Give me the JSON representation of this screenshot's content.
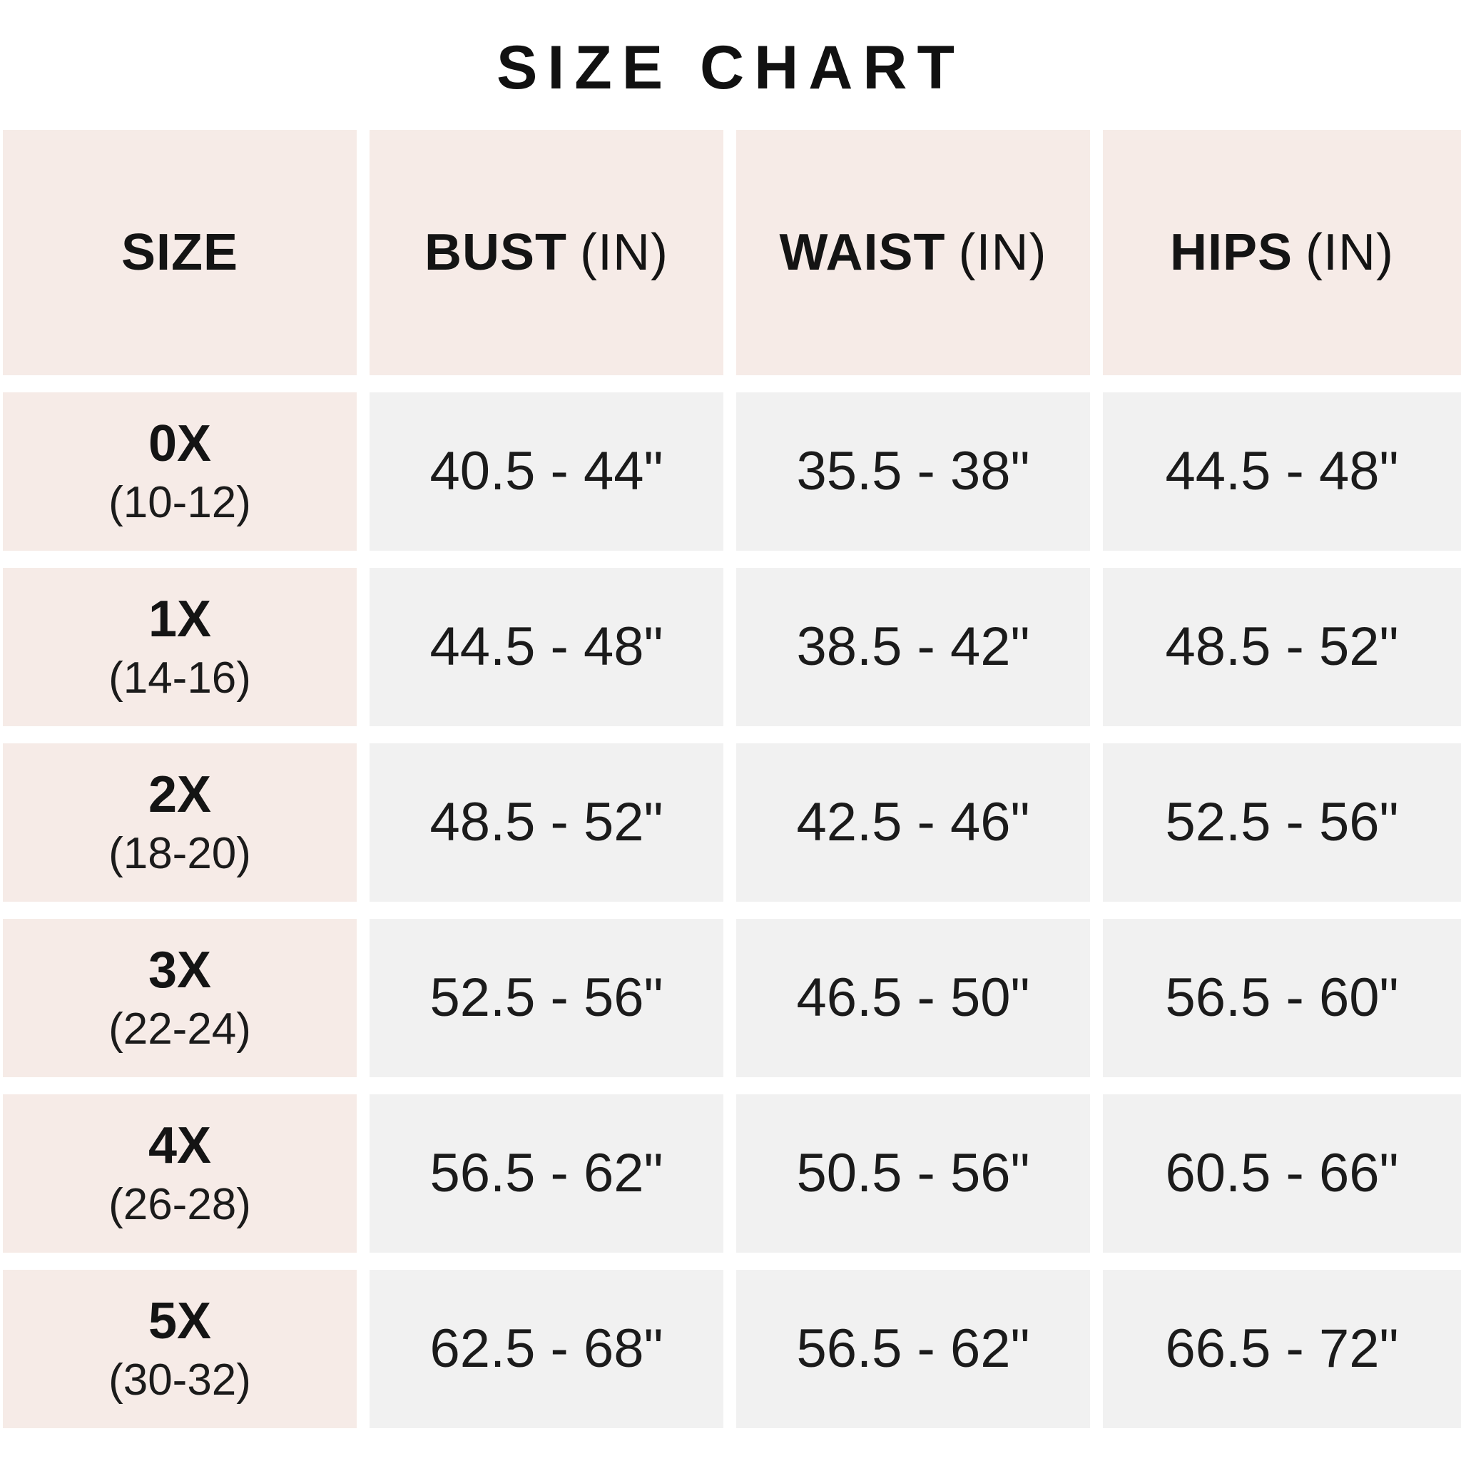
{
  "page": {
    "title": "SIZE CHART",
    "background": "#ffffff"
  },
  "colors": {
    "header_and_size_column_pink": "#f6ebe7",
    "value_cell_gray": "#f1f1f1",
    "text_dark": "#1b1b1b",
    "title_black": "#111111"
  },
  "table": {
    "columns": [
      {
        "label": "SIZE",
        "unit": ""
      },
      {
        "label": "BUST",
        "unit": "(IN)"
      },
      {
        "label": "WAIST",
        "unit": "(IN)"
      },
      {
        "label": "HIPS",
        "unit": "(IN)"
      }
    ],
    "rows": [
      {
        "size": "0X",
        "size_range": "(10-12)",
        "bust": "40.5 - 44\"",
        "waist": "35.5 - 38\"",
        "hips": "44.5 - 48\""
      },
      {
        "size": "1X",
        "size_range": "(14-16)",
        "bust": "44.5 - 48\"",
        "waist": "38.5 - 42\"",
        "hips": "48.5 - 52\""
      },
      {
        "size": "2X",
        "size_range": "(18-20)",
        "bust": "48.5 - 52\"",
        "waist": "42.5 - 46\"",
        "hips": "52.5 - 56\""
      },
      {
        "size": "3X",
        "size_range": "(22-24)",
        "bust": "52.5 - 56\"",
        "waist": "46.5 - 50\"",
        "hips": "56.5 - 60\""
      },
      {
        "size": "4X",
        "size_range": "(26-28)",
        "bust": "56.5 - 62\"",
        "waist": "50.5 - 56\"",
        "hips": "60.5 - 66\""
      },
      {
        "size": "5X",
        "size_range": "(30-32)",
        "bust": "62.5 - 68\"",
        "waist": "56.5 - 62\"",
        "hips": "66.5 - 72\""
      }
    ]
  },
  "chart_data": {
    "type": "table",
    "title": "SIZE CHART",
    "columns": [
      "SIZE",
      "BUST (IN)",
      "WAIST (IN)",
      "HIPS (IN)"
    ],
    "rows": [
      [
        "0X (10-12)",
        "40.5 - 44\"",
        "35.5 - 38\"",
        "44.5 - 48\""
      ],
      [
        "1X (14-16)",
        "44.5 - 48\"",
        "38.5 - 42\"",
        "48.5 - 52\""
      ],
      [
        "2X (18-20)",
        "48.5 - 52\"",
        "42.5 - 46\"",
        "52.5 - 56\""
      ],
      [
        "3X (22-24)",
        "52.5 - 56\"",
        "46.5 - 50\"",
        "56.5 - 60\""
      ],
      [
        "4X (26-28)",
        "56.5 - 62\"",
        "50.5 - 56\"",
        "60.5 - 66\""
      ],
      [
        "5X (30-32)",
        "62.5 - 68\"",
        "56.5 - 62\"",
        "66.5 - 72\""
      ]
    ]
  }
}
